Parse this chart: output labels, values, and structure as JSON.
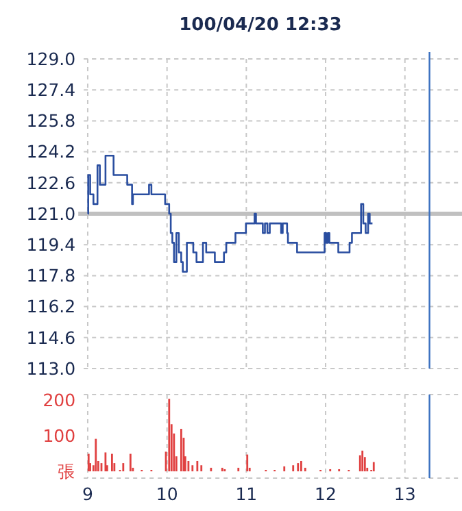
{
  "chart_data": [
    {
      "type": "step",
      "title": "100/04/20 12:33",
      "xlim": [
        8.95,
        13.72
      ],
      "xticks": [
        9,
        10,
        11,
        12,
        13
      ],
      "ylim": [
        113,
        129
      ],
      "yticks": [
        {
          "value": 129,
          "label": "129.0"
        },
        {
          "value": 127.4,
          "label": "127.4"
        },
        {
          "value": 125.8,
          "label": "125.8"
        },
        {
          "value": 124.2,
          "label": "124.2"
        },
        {
          "value": 122.6,
          "label": "122.6"
        },
        {
          "value": 121,
          "label": "121.0"
        },
        {
          "value": 119.4,
          "label": "119.4"
        },
        {
          "value": 117.8,
          "label": "117.8"
        },
        {
          "value": 116.2,
          "label": "116.2"
        },
        {
          "value": 114.6,
          "label": "114.6"
        },
        {
          "value": 113,
          "label": "113.0"
        }
      ],
      "grid": true,
      "tick_labels": "y",
      "line_style": "solid",
      "ref_lines": [
        {
          "axis": "y",
          "value": 121,
          "color": "#c0c0c0"
        },
        {
          "axis": "x",
          "value": 13.31,
          "color": "#3a70c0"
        }
      ],
      "series": [
        {
          "color": "#2a4ea0",
          "x": [
            9.001,
            9.006,
            9.031,
            9.072,
            9.123,
            9.153,
            9.224,
            9.326,
            9.498,
            9.559,
            9.57,
            9.773,
            9.803,
            9.976,
            10.027,
            10.047,
            10.067,
            10.088,
            10.118,
            10.149,
            10.179,
            10.199,
            10.25,
            10.331,
            10.372,
            10.453,
            10.494,
            10.603,
            10.718,
            10.747,
            10.863,
            10.995,
            11.104,
            11.122,
            11.208,
            11.235,
            11.266,
            11.296,
            11.439,
            11.459,
            11.514,
            11.525,
            11.64,
            11.987,
            12.007,
            12.028,
            12.048,
            12.16,
            12.302,
            12.332,
            12.447,
            12.475,
            12.505,
            12.536,
            12.556,
            12.591
          ],
          "values": [
            121.0,
            123.0,
            122.0,
            121.5,
            123.5,
            122.5,
            124.0,
            123.0,
            122.5,
            121.5,
            122.0,
            122.5,
            122.0,
            121.5,
            121.0,
            120.0,
            119.5,
            118.5,
            120.0,
            119.0,
            118.5,
            118.0,
            119.5,
            119.0,
            118.5,
            119.5,
            119.0,
            118.5,
            119.0,
            119.5,
            120.0,
            120.5,
            121.0,
            120.5,
            120.0,
            120.5,
            120.0,
            120.5,
            120.0,
            120.5,
            120.0,
            119.5,
            119.0,
            120.0,
            119.5,
            120.0,
            119.5,
            119.0,
            119.5,
            120.0,
            121.5,
            120.5,
            120.0,
            121.0,
            120.5,
            120.5
          ]
        }
      ]
    },
    {
      "type": "bar",
      "xlim": [
        8.95,
        13.72
      ],
      "xticks": [
        9,
        10,
        11,
        12,
        13
      ],
      "ylim": [
        -19,
        215
      ],
      "yticks": [
        {
          "value": 0,
          "label": "張"
        },
        100,
        200
      ],
      "grid": "x",
      "ref_lines": [
        {
          "axis": "x",
          "value": 13.31,
          "color": "#3a70c0"
        }
      ],
      "series": [
        {
          "color": "#e04040",
          "x": [
            9.011,
            9.031,
            9.072,
            9.102,
            9.133,
            9.173,
            9.224,
            9.245,
            9.306,
            9.336,
            9.407,
            9.448,
            9.539,
            9.57,
            9.681,
            9.803,
            9.986,
            10.027,
            10.057,
            10.088,
            10.118,
            10.179,
            10.21,
            10.23,
            10.27,
            10.321,
            10.382,
            10.433,
            10.555,
            10.697,
            10.728,
            10.9,
            11.012,
            11.042,
            11.246,
            11.357,
            11.479,
            11.591,
            11.652,
            11.692,
            11.743,
            11.936,
            12.058,
            12.17,
            12.292,
            12.434,
            12.464,
            12.495,
            12.525,
            12.576,
            12.607
          ],
          "values": [
            49,
            23,
            17,
            91,
            29,
            23,
            53,
            17,
            49,
            23,
            4,
            23,
            49,
            10,
            4,
            4,
            55,
            203,
            132,
            106,
            42,
            119,
            94,
            42,
            29,
            17,
            29,
            17,
            10,
            10,
            6,
            10,
            47,
            10,
            4,
            4,
            14,
            17,
            23,
            29,
            10,
            4,
            6,
            6,
            4,
            45,
            58,
            40,
            10,
            4,
            26
          ]
        }
      ]
    }
  ]
}
